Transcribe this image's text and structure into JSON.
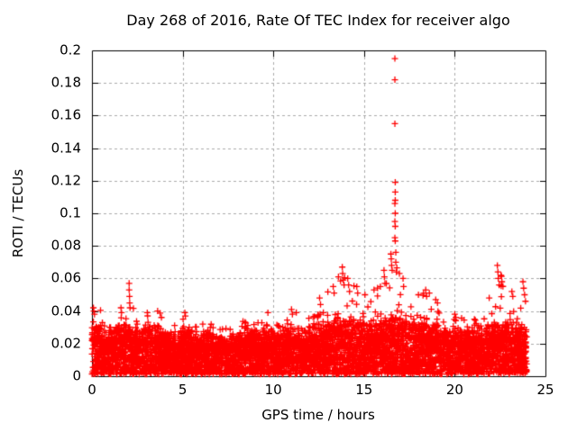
{
  "chart_data": {
    "type": "scatter",
    "title": "Day 268 of 2016, Rate Of TEC Index for receiver algo",
    "xlabel": "GPS time / hours",
    "ylabel": "ROTI / TECUs",
    "xlim": [
      0,
      25
    ],
    "ylim": [
      0,
      0.2
    ],
    "xticks": [
      0,
      5,
      10,
      15,
      20,
      25
    ],
    "yticks": [
      0,
      0.02,
      0.04,
      0.06,
      0.08,
      0.1,
      0.12,
      0.14,
      0.16,
      0.18,
      0.2
    ],
    "xtick_labels": [
      "0",
      "5",
      "10",
      "15",
      "20",
      "25"
    ],
    "ytick_labels": [
      "0",
      "0.02",
      "0.04",
      "0.06",
      "0.08",
      "0.1",
      "0.12",
      "0.14",
      "0.16",
      "0.18",
      "0.2"
    ],
    "grid": true,
    "grid_style": "dashed",
    "grid_color": "#aaaaaa",
    "border_color": "#000000",
    "background": "#ffffff",
    "marker": "plus",
    "marker_color": "#ff0000",
    "marker_size_px": 7,
    "legend": "none",
    "x_data_max": 23.97,
    "description": "Dense band of ROTI values between 0 and ~0.035 TECUs across 24 h with intermittent spike columns; strongest event near 16.7 h reaching 0.195.",
    "synthesis": {
      "seed": 42,
      "point_count": 6500,
      "bin_width": 0.5,
      "band_top": [
        0.03,
        0.028,
        0.03,
        0.032,
        0.03,
        0.028,
        0.03,
        0.028,
        0.026,
        0.026,
        0.028,
        0.026,
        0.026,
        0.026,
        0.024,
        0.024,
        0.026,
        0.026,
        0.026,
        0.028,
        0.026,
        0.028,
        0.03,
        0.028,
        0.03,
        0.032,
        0.034,
        0.036,
        0.036,
        0.034,
        0.032,
        0.034,
        0.034,
        0.036,
        0.034,
        0.032,
        0.032,
        0.032,
        0.03,
        0.028,
        0.028,
        0.028,
        0.028,
        0.03,
        0.032,
        0.032,
        0.03,
        0.032
      ],
      "bin_peak": [
        0.043,
        0.034,
        0.038,
        0.042,
        0.057,
        0.036,
        0.039,
        0.04,
        0.032,
        0.032,
        0.039,
        0.032,
        0.034,
        0.032,
        0.03,
        0.032,
        0.034,
        0.034,
        0.034,
        0.039,
        0.034,
        0.036,
        0.041,
        0.036,
        0.04,
        0.048,
        0.055,
        0.068,
        0.06,
        0.055,
        0.05,
        0.055,
        0.065,
        0.075,
        0.063,
        0.048,
        0.053,
        0.047,
        0.04,
        0.038,
        0.038,
        0.036,
        0.038,
        0.048,
        0.068,
        0.062,
        0.052,
        0.058
      ]
    },
    "outliers": [
      [
        0.08,
        0.042
      ],
      [
        0.1,
        0.04
      ],
      [
        0.14,
        0.038
      ],
      [
        1.6,
        0.042
      ],
      [
        1.63,
        0.039
      ],
      [
        2.05,
        0.057
      ],
      [
        2.05,
        0.053
      ],
      [
        2.07,
        0.049
      ],
      [
        2.08,
        0.045
      ],
      [
        2.1,
        0.042
      ],
      [
        3.05,
        0.039
      ],
      [
        3.62,
        0.04
      ],
      [
        5.12,
        0.039
      ],
      [
        5.15,
        0.037
      ],
      [
        9.7,
        0.039
      ],
      [
        11.0,
        0.041
      ],
      [
        11.05,
        0.038
      ],
      [
        12.55,
        0.048
      ],
      [
        12.6,
        0.044
      ],
      [
        13.3,
        0.055
      ],
      [
        13.35,
        0.051
      ],
      [
        13.8,
        0.067
      ],
      [
        13.82,
        0.063
      ],
      [
        13.85,
        0.059
      ],
      [
        13.9,
        0.056
      ],
      [
        14.1,
        0.06
      ],
      [
        14.15,
        0.056
      ],
      [
        14.2,
        0.052
      ],
      [
        14.6,
        0.055
      ],
      [
        14.65,
        0.051
      ],
      [
        15.05,
        0.05
      ],
      [
        15.55,
        0.053
      ],
      [
        15.9,
        0.055
      ],
      [
        16.1,
        0.065
      ],
      [
        16.12,
        0.061
      ],
      [
        16.15,
        0.057
      ],
      [
        16.48,
        0.075
      ],
      [
        16.5,
        0.072
      ],
      [
        16.52,
        0.068
      ],
      [
        16.55,
        0.065
      ],
      [
        16.7,
        0.195
      ],
      [
        16.7,
        0.182
      ],
      [
        16.7,
        0.155
      ],
      [
        16.72,
        0.119
      ],
      [
        16.72,
        0.113
      ],
      [
        16.72,
        0.108
      ],
      [
        16.7,
        0.106
      ],
      [
        16.72,
        0.1
      ],
      [
        16.7,
        0.095
      ],
      [
        16.72,
        0.092
      ],
      [
        16.7,
        0.085
      ],
      [
        16.72,
        0.083
      ],
      [
        16.75,
        0.076
      ],
      [
        16.75,
        0.07
      ],
      [
        16.78,
        0.064
      ],
      [
        16.95,
        0.063
      ],
      [
        17.15,
        0.06
      ],
      [
        17.18,
        0.055
      ],
      [
        18.0,
        0.05
      ],
      [
        18.4,
        0.053
      ],
      [
        18.45,
        0.049
      ],
      [
        18.6,
        0.051
      ],
      [
        18.95,
        0.047
      ],
      [
        19.05,
        0.045
      ],
      [
        20.0,
        0.038
      ],
      [
        21.9,
        0.048
      ],
      [
        22.35,
        0.068
      ],
      [
        22.38,
        0.064
      ],
      [
        22.4,
        0.06
      ],
      [
        22.45,
        0.056
      ],
      [
        22.55,
        0.062
      ],
      [
        22.6,
        0.058
      ],
      [
        23.15,
        0.052
      ],
      [
        23.2,
        0.049
      ],
      [
        23.76,
        0.058
      ],
      [
        23.8,
        0.054
      ],
      [
        23.85,
        0.05
      ],
      [
        23.9,
        0.046
      ]
    ]
  }
}
